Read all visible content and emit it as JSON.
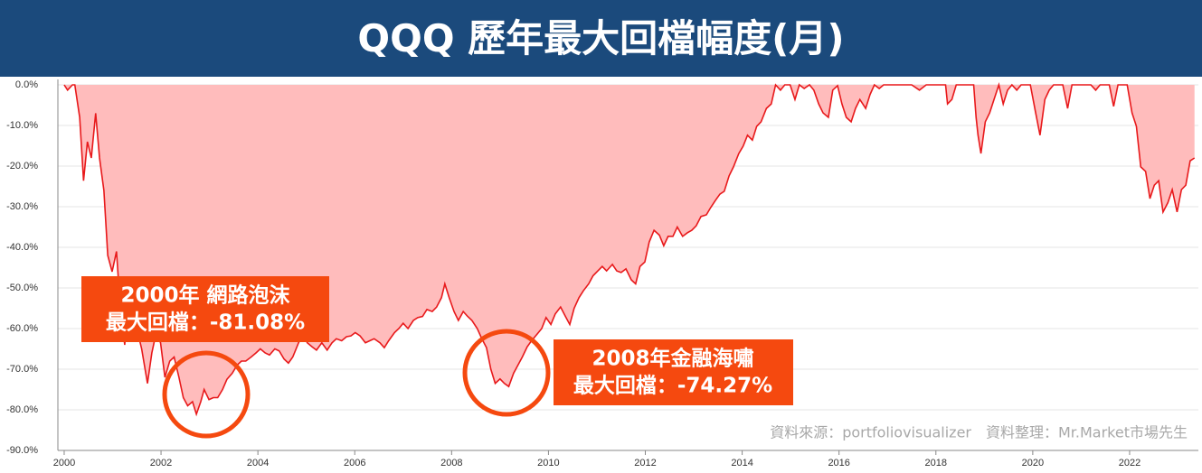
{
  "chart_data": {
    "type": "area",
    "title": "QQQ 歷年最大回檔幅度(月)",
    "x": [
      2000.0,
      2000.07,
      2000.17,
      2000.22,
      2000.32,
      2000.4,
      2000.48,
      2000.56,
      2000.65,
      2000.73,
      2000.82,
      2000.9,
      2000.99,
      2001.08,
      2001.16,
      2001.25,
      2001.33,
      2001.42,
      2001.5,
      2001.6,
      2001.72,
      2001.81,
      2001.9,
      2001.99,
      2002.08,
      2002.18,
      2002.27,
      2002.37,
      2002.46,
      2002.55,
      2002.65,
      2002.73,
      2002.82,
      2002.89,
      2002.99,
      2003.08,
      2003.17,
      2003.27,
      2003.36,
      2003.47,
      2003.57,
      2003.66,
      2003.75,
      2003.86,
      2003.96,
      2004.05,
      2004.15,
      2004.24,
      2004.35,
      2004.44,
      2004.54,
      2004.63,
      2004.72,
      2004.84,
      2004.93,
      2005.02,
      2005.12,
      2005.21,
      2005.32,
      2005.43,
      2005.53,
      2005.62,
      2005.73,
      2005.83,
      2005.92,
      2006.01,
      2006.11,
      2006.22,
      2006.31,
      2006.4,
      2006.52,
      2006.61,
      2006.7,
      2006.82,
      2006.91,
      2007.0,
      2007.1,
      2007.21,
      2007.3,
      2007.4,
      2007.49,
      2007.6,
      2007.69,
      2007.79,
      2007.86,
      2007.95,
      2008.05,
      2008.14,
      2008.24,
      2008.33,
      2008.42,
      2008.53,
      2008.62,
      2008.72,
      2008.81,
      2008.9,
      2009.0,
      2009.09,
      2009.18,
      2009.28,
      2009.37,
      2009.46,
      2009.56,
      2009.65,
      2009.77,
      2009.86,
      2009.95,
      2010.05,
      2010.14,
      2010.25,
      2010.35,
      2010.44,
      2010.53,
      2010.63,
      2010.72,
      2010.83,
      2010.92,
      2011.02,
      2011.11,
      2011.2,
      2011.32,
      2011.41,
      2011.5,
      2011.6,
      2011.71,
      2011.8,
      2011.89,
      2011.99,
      2012.08,
      2012.18,
      2012.29,
      2012.38,
      2012.47,
      2012.57,
      2012.66,
      2012.77,
      2012.87,
      2012.96,
      2013.05,
      2013.15,
      2013.26,
      2013.35,
      2013.45,
      2013.54,
      2013.63,
      2013.73,
      2013.82,
      2013.93,
      2014.02,
      2014.11,
      2014.21,
      2014.3,
      2014.39,
      2014.5,
      2014.6,
      2014.69,
      2014.79,
      2014.88,
      2014.99,
      2015.09,
      2015.18,
      2015.28,
      2015.39,
      2015.48,
      2015.58,
      2015.67,
      2015.78,
      2015.87,
      2015.97,
      2016.06,
      2016.15,
      2016.25,
      2016.34,
      2016.43,
      2016.55,
      2016.64,
      2016.73,
      2016.83,
      2016.92,
      2017.5,
      2017.66,
      2017.8,
      2018.2,
      2018.24,
      2018.33,
      2018.42,
      2018.78,
      2018.83,
      2018.87,
      2018.93,
      2019.02,
      2019.11,
      2019.2,
      2019.3,
      2019.39,
      2019.48,
      2019.57,
      2019.67,
      2019.76,
      2019.95,
      2020.06,
      2020.15,
      2020.25,
      2020.34,
      2020.43,
      2020.62,
      2020.72,
      2020.81,
      2021.2,
      2021.3,
      2021.39,
      2021.58,
      2021.67,
      2021.76,
      2021.95,
      2022.05,
      2022.14,
      2022.23,
      2022.33,
      2022.42,
      2022.51,
      2022.6,
      2022.69,
      2022.79,
      2022.88,
      2022.98,
      2023.07,
      2023.16,
      2023.25,
      2023.34
    ],
    "values": [
      0,
      -1.3,
      0,
      0,
      -8,
      -23.6,
      -14,
      -18,
      -7,
      -18,
      -26,
      -42,
      -46,
      -41,
      -55,
      -64,
      -52,
      -57,
      -60,
      -65,
      -73.5,
      -66,
      -61,
      -63.5,
      -72,
      -68,
      -67,
      -72,
      -77,
      -79,
      -78,
      -81.08,
      -78,
      -75,
      -77.5,
      -77,
      -77,
      -75,
      -72.5,
      -71,
      -69,
      -68,
      -68,
      -67,
      -66,
      -65,
      -66,
      -66.5,
      -65,
      -65.5,
      -67.5,
      -68.5,
      -67,
      -63.5,
      -61.5,
      -63.5,
      -64.5,
      -65.3,
      -63.5,
      -65.3,
      -63.5,
      -62.5,
      -63,
      -62,
      -61.8,
      -61,
      -61.8,
      -63.5,
      -63,
      -62.5,
      -63.5,
      -64.7,
      -63,
      -61,
      -60,
      -58.7,
      -60,
      -58,
      -57.3,
      -57,
      -55.3,
      -55.8,
      -54.7,
      -52.4,
      -49,
      -52.4,
      -55.8,
      -58,
      -55.8,
      -57,
      -58,
      -60,
      -62.4,
      -64.7,
      -70,
      -73.5,
      -72.4,
      -73.5,
      -74.27,
      -71,
      -69,
      -67,
      -64.5,
      -63,
      -61.3,
      -60,
      -57.3,
      -59,
      -56.4,
      -54.7,
      -57,
      -59,
      -55,
      -52.4,
      -50.7,
      -49,
      -47,
      -45.8,
      -44.7,
      -45.8,
      -44.2,
      -45.8,
      -46.2,
      -45.3,
      -48,
      -49,
      -44.7,
      -43.6,
      -38.7,
      -35.8,
      -37,
      -39.6,
      -37.3,
      -37.3,
      -35,
      -37.3,
      -36.4,
      -35.8,
      -34.7,
      -32.4,
      -32,
      -30.2,
      -28.4,
      -26.9,
      -26.2,
      -22.4,
      -20.2,
      -16.9,
      -15.1,
      -12.4,
      -13.6,
      -10.2,
      -9.1,
      -5.8,
      -4.7,
      0,
      -1.3,
      0,
      0,
      -3.6,
      0,
      -0.9,
      0,
      -1.3,
      -4.7,
      -6.9,
      -8,
      -1.3,
      -0.2,
      -4.7,
      -8,
      -9.1,
      -5.8,
      -3.6,
      -5.8,
      -2.4,
      0,
      -0.9,
      0,
      0,
      -1.3,
      0,
      0,
      -4.7,
      -3.6,
      0,
      0,
      -8,
      -12.4,
      -16.9,
      -9.1,
      -6.9,
      -3.6,
      0,
      -4.7,
      -1.3,
      0,
      -1.3,
      0,
      0,
      -6.9,
      -12.4,
      -3.6,
      -1.3,
      0,
      0,
      -5.8,
      0,
      0,
      -1.3,
      0,
      0,
      -5.3,
      0,
      0,
      -6.9,
      -10.2,
      -20.2,
      -21.3,
      -28,
      -24.7,
      -23.6,
      -31.3,
      -29,
      -25.8,
      -31.3,
      -25.8,
      -24.7,
      -18.7,
      -18
    ],
    "color": "#e8191b",
    "fill_color": "#ffbcbc",
    "xlim": [
      1999.87,
      2023.42
    ],
    "xticks": [
      2000,
      2002,
      2004,
      2006,
      2008,
      2010,
      2012,
      2014,
      2016,
      2018,
      2020,
      2022
    ],
    "ylim": [
      -90,
      0
    ],
    "yticks": [
      {
        "value": 0,
        "label": "0.0%"
      },
      {
        "value": -10,
        "label": "-10.0%"
      },
      {
        "value": -20,
        "label": "-20.0%"
      },
      {
        "value": -30,
        "label": "-30.0%"
      },
      {
        "value": -40,
        "label": "-40.0%"
      },
      {
        "value": -50,
        "label": "-50.0%"
      },
      {
        "value": -60,
        "label": "-60.0%"
      },
      {
        "value": -70,
        "label": "-70.0%"
      },
      {
        "value": -80,
        "label": "-80.0%"
      },
      {
        "value": -90,
        "label": "-90.0%"
      }
    ],
    "grid": true,
    "annotations": [
      {
        "lines": [
          "2000年 網路泡沫",
          "最大回檔：-81.08%"
        ]
      },
      {
        "lines": [
          "2008年金融海嘯",
          "最大回檔：-74.27%"
        ]
      }
    ],
    "source": "資料來源：portfoliovisualizer　資料整理：Mr.Market市場先生"
  }
}
